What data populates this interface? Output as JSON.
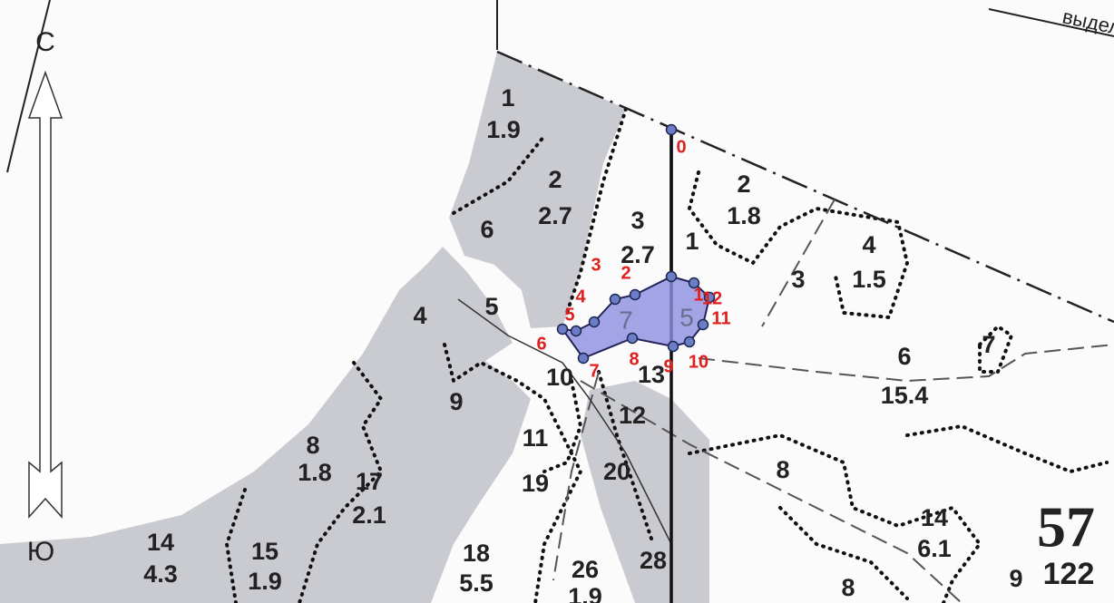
{
  "corner_label": "выдел",
  "compass": {
    "north": "С",
    "south": "Ю"
  },
  "plot_labels": [
    "1",
    "1.9",
    "2",
    "2.7",
    "6",
    "3",
    "2.7",
    "1",
    "2",
    "1.8",
    "4",
    "1.5",
    "3",
    "4",
    "5",
    "6",
    "15.4",
    "7",
    "10",
    "13",
    "9",
    "12",
    "11",
    "8",
    "1.8",
    "17",
    "2.1",
    "19",
    "20",
    "8",
    "14",
    "6.1",
    "14",
    "4.3",
    "15",
    "1.9",
    "18",
    "5.5",
    "26",
    "1.9",
    "28",
    "8",
    "9"
  ],
  "section": {
    "number": "57",
    "area": "122"
  },
  "polygon_labels": [
    "7",
    "5"
  ],
  "point_labels": [
    "0",
    "1",
    "2",
    "3",
    "4",
    "5",
    "6",
    "7",
    "8",
    "9",
    "10",
    "11",
    "12"
  ]
}
